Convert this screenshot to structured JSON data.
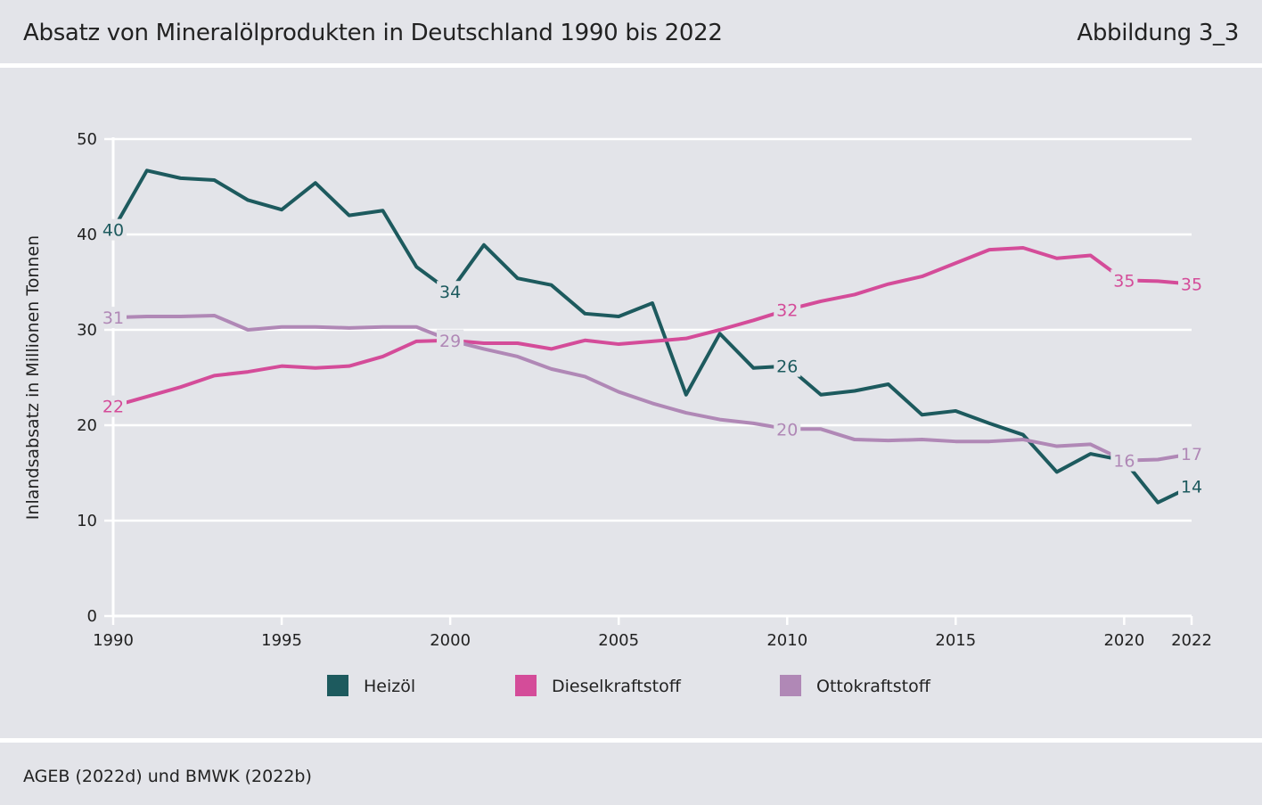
{
  "header": {
    "title": "Absatz von Mineralölprodukten in Deutschland 1990 bis 2022",
    "figure_label": "Abbildung 3_3"
  },
  "footer": {
    "source": "AGEB (2022d) und BMWK (2022b)"
  },
  "chart_data": {
    "type": "line",
    "title": "Absatz von Mineralölprodukten in Deutschland 1990 bis 2022",
    "xlabel": "",
    "ylabel": "Inlandsabsatz in Millionen Tonnen",
    "xlim": [
      1990,
      2022
    ],
    "ylim": [
      0,
      50
    ],
    "y_ticks": [
      0,
      10,
      20,
      30,
      40,
      50
    ],
    "x_ticks": [
      1990,
      1995,
      2000,
      2005,
      2010,
      2015,
      2020,
      2022
    ],
    "grid": true,
    "legend_position": "bottom",
    "x": [
      1990,
      1991,
      1992,
      1993,
      1994,
      1995,
      1996,
      1997,
      1998,
      1999,
      2000,
      2001,
      2002,
      2003,
      2004,
      2005,
      2006,
      2007,
      2008,
      2009,
      2010,
      2011,
      2012,
      2013,
      2014,
      2015,
      2016,
      2017,
      2018,
      2019,
      2020,
      2021,
      2022
    ],
    "series": [
      {
        "name": "Heizöl",
        "color": "#1d5a5e",
        "values": [
          40.5,
          46.7,
          45.9,
          45.7,
          43.6,
          42.6,
          45.4,
          42.0,
          42.5,
          36.6,
          34.0,
          38.9,
          35.4,
          34.7,
          31.7,
          31.4,
          32.8,
          23.2,
          29.6,
          26.0,
          26.2,
          23.2,
          23.6,
          24.3,
          21.1,
          21.5,
          20.2,
          19.0,
          15.1,
          17.0,
          16.3,
          11.9,
          13.6
        ],
        "labels": [
          {
            "year": 1990,
            "text": "40"
          },
          {
            "year": 2000,
            "text": "34"
          },
          {
            "year": 2010,
            "text": "26"
          },
          {
            "year": 2020,
            "text": "16"
          },
          {
            "year": 2022,
            "text": "14"
          }
        ]
      },
      {
        "name": "Dieselkraftstoff",
        "color": "#d44c99",
        "values": [
          22.0,
          23.0,
          24.0,
          25.2,
          25.6,
          26.2,
          26.0,
          26.2,
          27.2,
          28.8,
          28.9,
          28.6,
          28.6,
          28.0,
          28.9,
          28.5,
          28.8,
          29.1,
          30.0,
          31.0,
          32.1,
          33.0,
          33.7,
          34.8,
          35.6,
          37.0,
          38.4,
          38.6,
          37.5,
          37.8,
          35.2,
          35.1,
          34.8
        ],
        "labels": [
          {
            "year": 1990,
            "text": "22"
          },
          {
            "year": 2000,
            "text": "29"
          },
          {
            "year": 2010,
            "text": "32"
          },
          {
            "year": 2020,
            "text": "35"
          },
          {
            "year": 2022,
            "text": "35"
          }
        ]
      },
      {
        "name": "Ottokraftstoff",
        "color": "#b088b6",
        "values": [
          31.3,
          31.4,
          31.4,
          31.5,
          30.0,
          30.3,
          30.3,
          30.2,
          30.3,
          30.3,
          28.9,
          28.0,
          27.2,
          25.9,
          25.1,
          23.5,
          22.3,
          21.3,
          20.6,
          20.2,
          19.6,
          19.6,
          18.5,
          18.4,
          18.5,
          18.3,
          18.3,
          18.5,
          17.8,
          18.0,
          16.3,
          16.4,
          17.0
        ],
        "labels": [
          {
            "year": 1990,
            "text": "31"
          },
          {
            "year": 2000,
            "text": "29"
          },
          {
            "year": 2010,
            "text": "20"
          },
          {
            "year": 2020,
            "text": "16"
          },
          {
            "year": 2022,
            "text": "17"
          }
        ]
      }
    ]
  }
}
